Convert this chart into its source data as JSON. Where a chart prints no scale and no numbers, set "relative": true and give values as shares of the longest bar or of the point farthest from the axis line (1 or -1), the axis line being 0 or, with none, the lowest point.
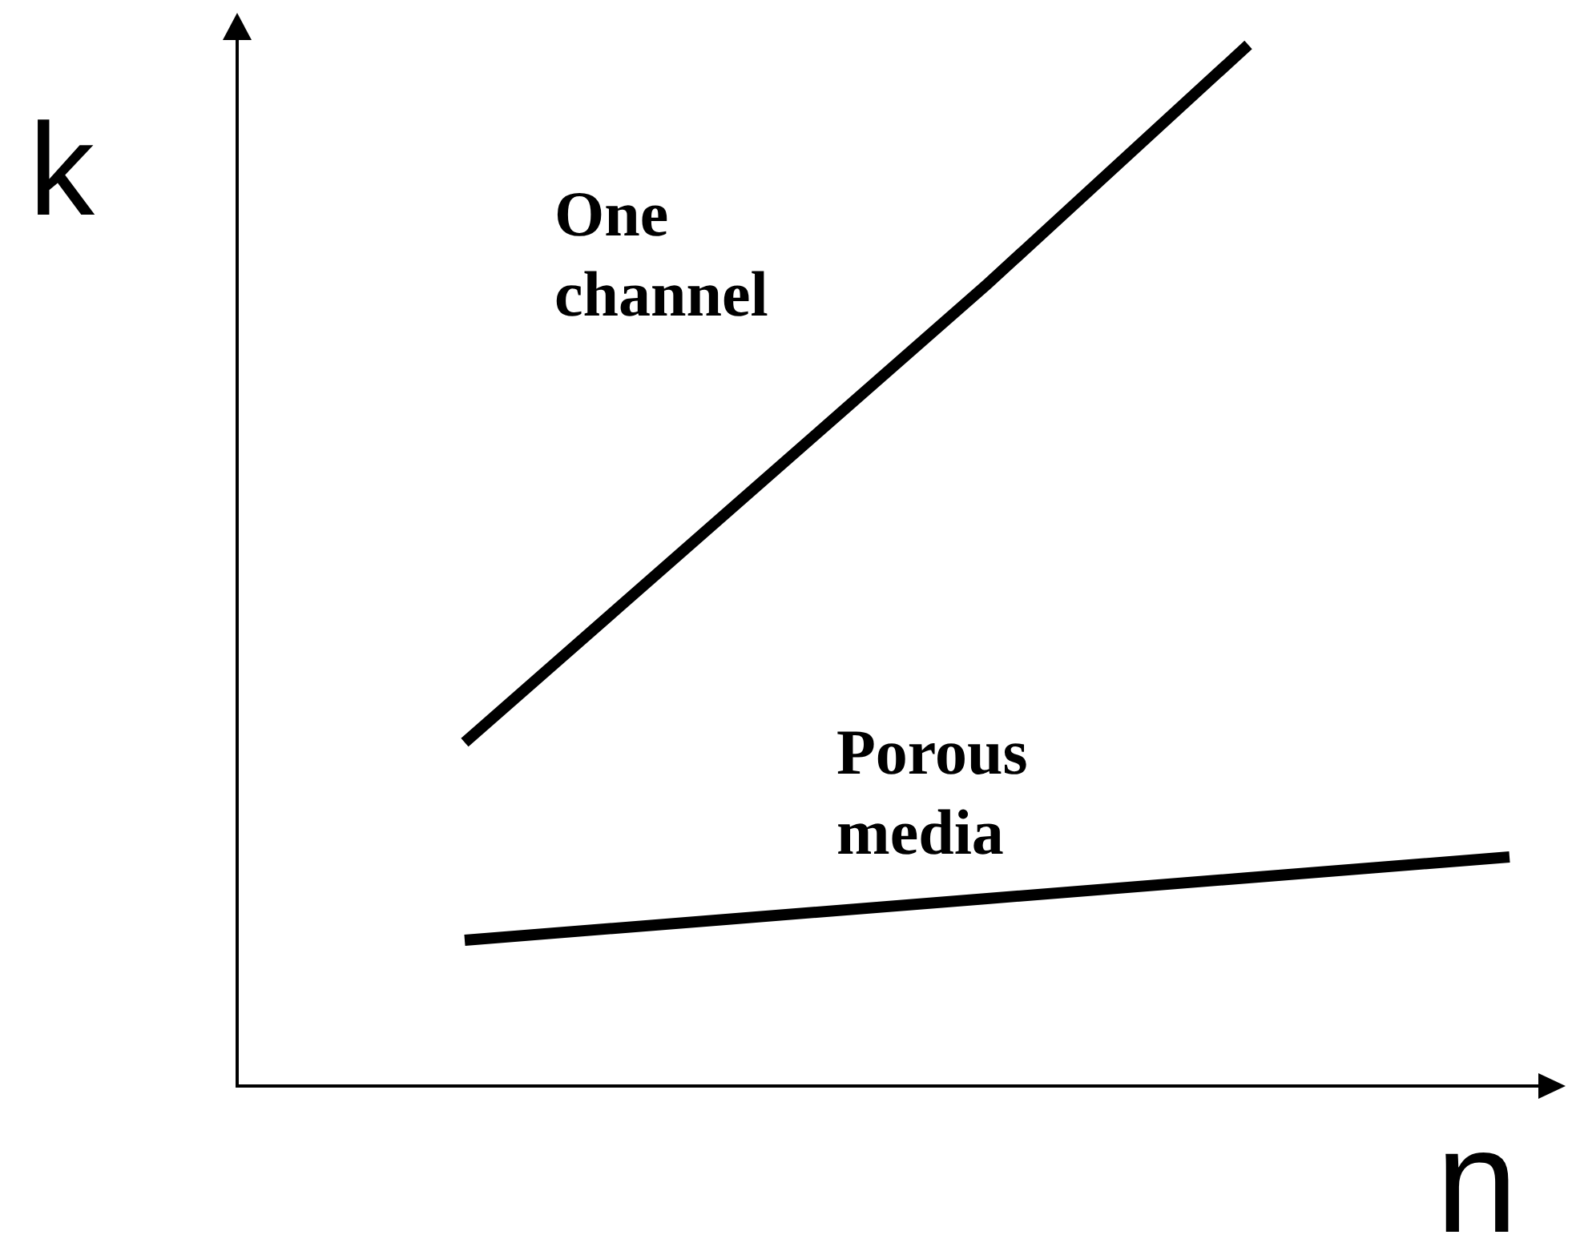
{
  "chart_data": {
    "type": "line",
    "xlabel": "n",
    "ylabel": "k",
    "relative": true,
    "categories": [
      null,
      null,
      null,
      null,
      null
    ],
    "series": [
      {
        "name": "One channel",
        "color": "#000000",
        "values": [
          0.33,
          0.55,
          0.77,
          1,
          null
        ]
      },
      {
        "name": "Porous media",
        "color": "#000000",
        "values": [
          0.14,
          0.16,
          0.18,
          0.2,
          0.22
        ]
      }
    ],
    "marker": "none",
    "line_style": "solid"
  }
}
